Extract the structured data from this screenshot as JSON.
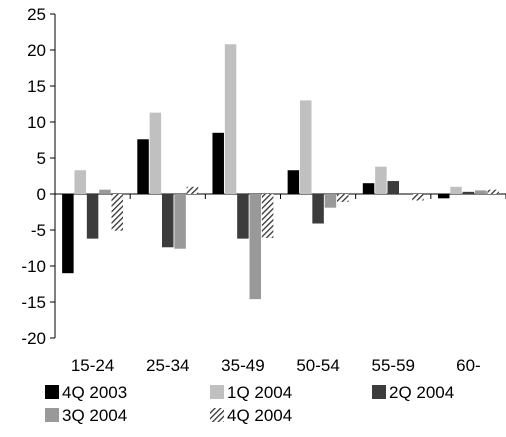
{
  "chart_data": {
    "type": "bar",
    "title": "",
    "xlabel": "",
    "ylabel": "",
    "ylim": [
      -20,
      25
    ],
    "yticks": [
      -20,
      -15,
      -10,
      -5,
      0,
      5,
      10,
      15,
      20,
      25
    ],
    "categories": [
      "15-24",
      "25-34",
      "35-49",
      "50-54",
      "55-59",
      "60-"
    ],
    "grid": false,
    "legend_position": "bottom",
    "series": [
      {
        "name": "4Q 2003",
        "color": "#000000",
        "pattern": "solid",
        "values": [
          -11.0,
          7.6,
          8.5,
          3.3,
          1.5,
          -0.6
        ]
      },
      {
        "name": "1Q 2004",
        "color": "#c0c0c0",
        "pattern": "solid",
        "values": [
          3.3,
          11.3,
          20.8,
          13.0,
          3.8,
          1.0
        ]
      },
      {
        "name": "2Q 2004",
        "color": "#3c3c3c",
        "pattern": "solid",
        "values": [
          -6.2,
          -7.4,
          -6.2,
          -4.1,
          1.8,
          0.3
        ]
      },
      {
        "name": "3Q 2004",
        "color": "#999999",
        "pattern": "solid",
        "values": [
          0.6,
          -7.6,
          -14.6,
          -1.9,
          0.0,
          0.5
        ]
      },
      {
        "name": "4Q 2004",
        "color": "#555555",
        "pattern": "hatched",
        "values": [
          -5.1,
          1.0,
          -6.1,
          -1.1,
          -0.9,
          0.6
        ]
      }
    ]
  }
}
